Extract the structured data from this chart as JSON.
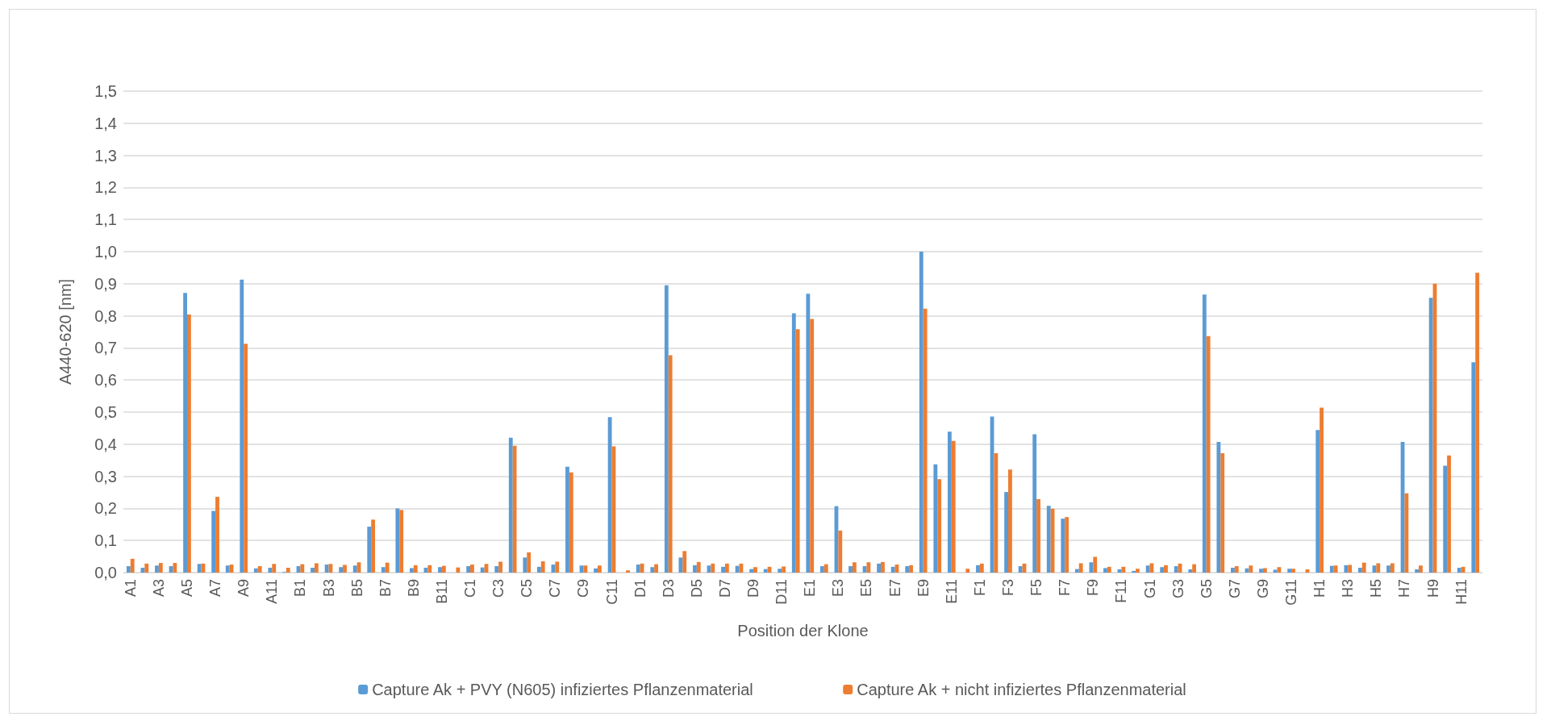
{
  "chart_data": {
    "type": "bar",
    "xlabel": "Position der Klone",
    "ylabel": "A440-620 [nm]",
    "categories": [
      "A1",
      null,
      "A3",
      null,
      "A5",
      null,
      "A7",
      null,
      "A9",
      null,
      "A11",
      null,
      "B1",
      null,
      "B3",
      null,
      "B5",
      null,
      "B7",
      null,
      "B9",
      null,
      "B11",
      null,
      "C1",
      null,
      "C3",
      null,
      "C5",
      null,
      "C7",
      null,
      "C9",
      null,
      "C11",
      null,
      "D1",
      null,
      "D3",
      null,
      "D5",
      null,
      "D7",
      null,
      "D9",
      null,
      "D11",
      null,
      "E1",
      null,
      "E3",
      null,
      "E5",
      null,
      "E7",
      null,
      "E9",
      null,
      "E11",
      null,
      "F1",
      null,
      "F3",
      null,
      "F5",
      null,
      "F7",
      null,
      "F9",
      null,
      "F11",
      null,
      "G1",
      null,
      "G3",
      null,
      "G5",
      null,
      "G7",
      null,
      "G9",
      null,
      "G11",
      null,
      "H1",
      null,
      "H3",
      null,
      "H5",
      null,
      "H7",
      null,
      "H9",
      null,
      "H11",
      null
    ],
    "series": [
      {
        "name": "Capture Ak + PVY (N605) infiziertes Pflanzenmaterial",
        "color": "#5b9bd5",
        "values": [
          0.02,
          0.015,
          0.022,
          0.02,
          0.871,
          0.027,
          0.192,
          0.022,
          0.913,
          0.013,
          0.015,
          0.002,
          0.02,
          0.015,
          0.025,
          0.017,
          0.022,
          0.143,
          0.017,
          0.2,
          0.014,
          0.015,
          0.017,
          0,
          0.02,
          0.016,
          0.02,
          0.42,
          0.047,
          0.018,
          0.025,
          0.33,
          0.022,
          0.013,
          0.484,
          0,
          0.025,
          0.017,
          0.895,
          0.047,
          0.023,
          0.022,
          0.018,
          0.021,
          0.011,
          0.011,
          0.012,
          0.808,
          0.869,
          0.02,
          0.207,
          0.02,
          0.02,
          0.028,
          0.018,
          0.02,
          1.0,
          0.337,
          0.439,
          0,
          0.023,
          0.486,
          0.251,
          0.02,
          0.431,
          0.208,
          0.168,
          0.011,
          0.032,
          0.014,
          0.01,
          0.005,
          0.022,
          0.017,
          0.02,
          0.01,
          0.866,
          0.407,
          0.015,
          0.013,
          0.012,
          0.009,
          0.012,
          0,
          0.444,
          0.021,
          0.023,
          0.015,
          0.022,
          0.022,
          0.407,
          0.01,
          0.856,
          0.333,
          0.015,
          0.655
        ]
      },
      {
        "name": "Capture Ak + nicht infiziertes Pflanzenmaterial",
        "color": "#ed7d31",
        "values": [
          0.043,
          0.028,
          0.03,
          0.03,
          0.804,
          0.028,
          0.236,
          0.025,
          0.713,
          0.02,
          0.027,
          0.015,
          0.026,
          0.029,
          0.027,
          0.024,
          0.032,
          0.165,
          0.031,
          0.195,
          0.023,
          0.023,
          0.021,
          0.016,
          0.025,
          0.027,
          0.034,
          0.395,
          0.063,
          0.035,
          0.034,
          0.312,
          0.022,
          0.022,
          0.393,
          0.007,
          0.028,
          0.026,
          0.677,
          0.067,
          0.033,
          0.028,
          0.028,
          0.028,
          0.017,
          0.018,
          0.019,
          0.758,
          0.79,
          0.026,
          0.131,
          0.032,
          0.032,
          0.033,
          0.025,
          0.023,
          0.822,
          0.291,
          0.41,
          0.012,
          0.028,
          0.372,
          0.321,
          0.028,
          0.229,
          0.199,
          0.173,
          0.029,
          0.049,
          0.018,
          0.018,
          0.012,
          0.029,
          0.023,
          0.028,
          0.026,
          0.737,
          0.372,
          0.02,
          0.022,
          0.014,
          0.017,
          0.012,
          0.01,
          0.514,
          0.022,
          0.024,
          0.031,
          0.029,
          0.029,
          0.247,
          0.022,
          0.9,
          0.365,
          0.018,
          0.934
        ]
      }
    ],
    "ylim": [
      0,
      1.5
    ],
    "yticks": [
      {
        "value": 0,
        "label": "0,0"
      },
      {
        "value": 0.1,
        "label": "0,1"
      },
      {
        "value": 0.2,
        "label": "0,2"
      },
      {
        "value": 0.3,
        "label": "0,3"
      },
      {
        "value": 0.4,
        "label": "0,4"
      },
      {
        "value": 0.5,
        "label": "0,5"
      },
      {
        "value": 0.6,
        "label": "0,6"
      },
      {
        "value": 0.7,
        "label": "0,7"
      },
      {
        "value": 0.8,
        "label": "0,8"
      },
      {
        "value": 0.9,
        "label": "0,9"
      },
      {
        "value": 1.0,
        "label": "1,0"
      },
      {
        "value": 1.1,
        "label": "1,1"
      },
      {
        "value": 1.2,
        "label": "1,2"
      },
      {
        "value": 1.3,
        "label": "1,3"
      },
      {
        "value": 1.4,
        "label": "1,4"
      },
      {
        "value": 1.5,
        "label": "1,5"
      }
    ],
    "grid": "y",
    "legend": "bottom"
  }
}
